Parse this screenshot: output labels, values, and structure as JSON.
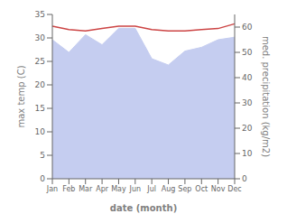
{
  "chart_data": {
    "type": "line",
    "xlabel": "date (month)",
    "ylabel": "max temp (C)",
    "y2label": "med. precipitation (kg/m2)",
    "categories": [
      "Jan",
      "Feb",
      "Mar",
      "Apr",
      "May",
      "Jun",
      "Jul",
      "Aug",
      "Sep",
      "Oct",
      "Nov",
      "Dec"
    ],
    "series": [
      {
        "type": "area",
        "axis": "y2",
        "color": "#c5cdf0",
        "values": [
          55.0,
          50.0,
          57.0,
          53.0,
          59.5,
          59.5,
          47.5,
          45.0,
          50.5,
          52.0,
          55.0,
          56.0
        ]
      },
      {
        "type": "line",
        "color": "#cc4444",
        "values": [
          32.5,
          31.8,
          31.5,
          32.0,
          32.5,
          32.5,
          31.8,
          31.5,
          31.5,
          31.8,
          32.0,
          33.0
        ]
      }
    ],
    "ylim": [
      0,
      35
    ],
    "yticks": [
      0,
      5,
      10,
      15,
      20,
      25,
      30,
      35
    ],
    "y2lim": [
      0,
      65
    ],
    "y2ticks": [
      0,
      10,
      20,
      30,
      40,
      50,
      60
    ],
    "grid": false
  }
}
